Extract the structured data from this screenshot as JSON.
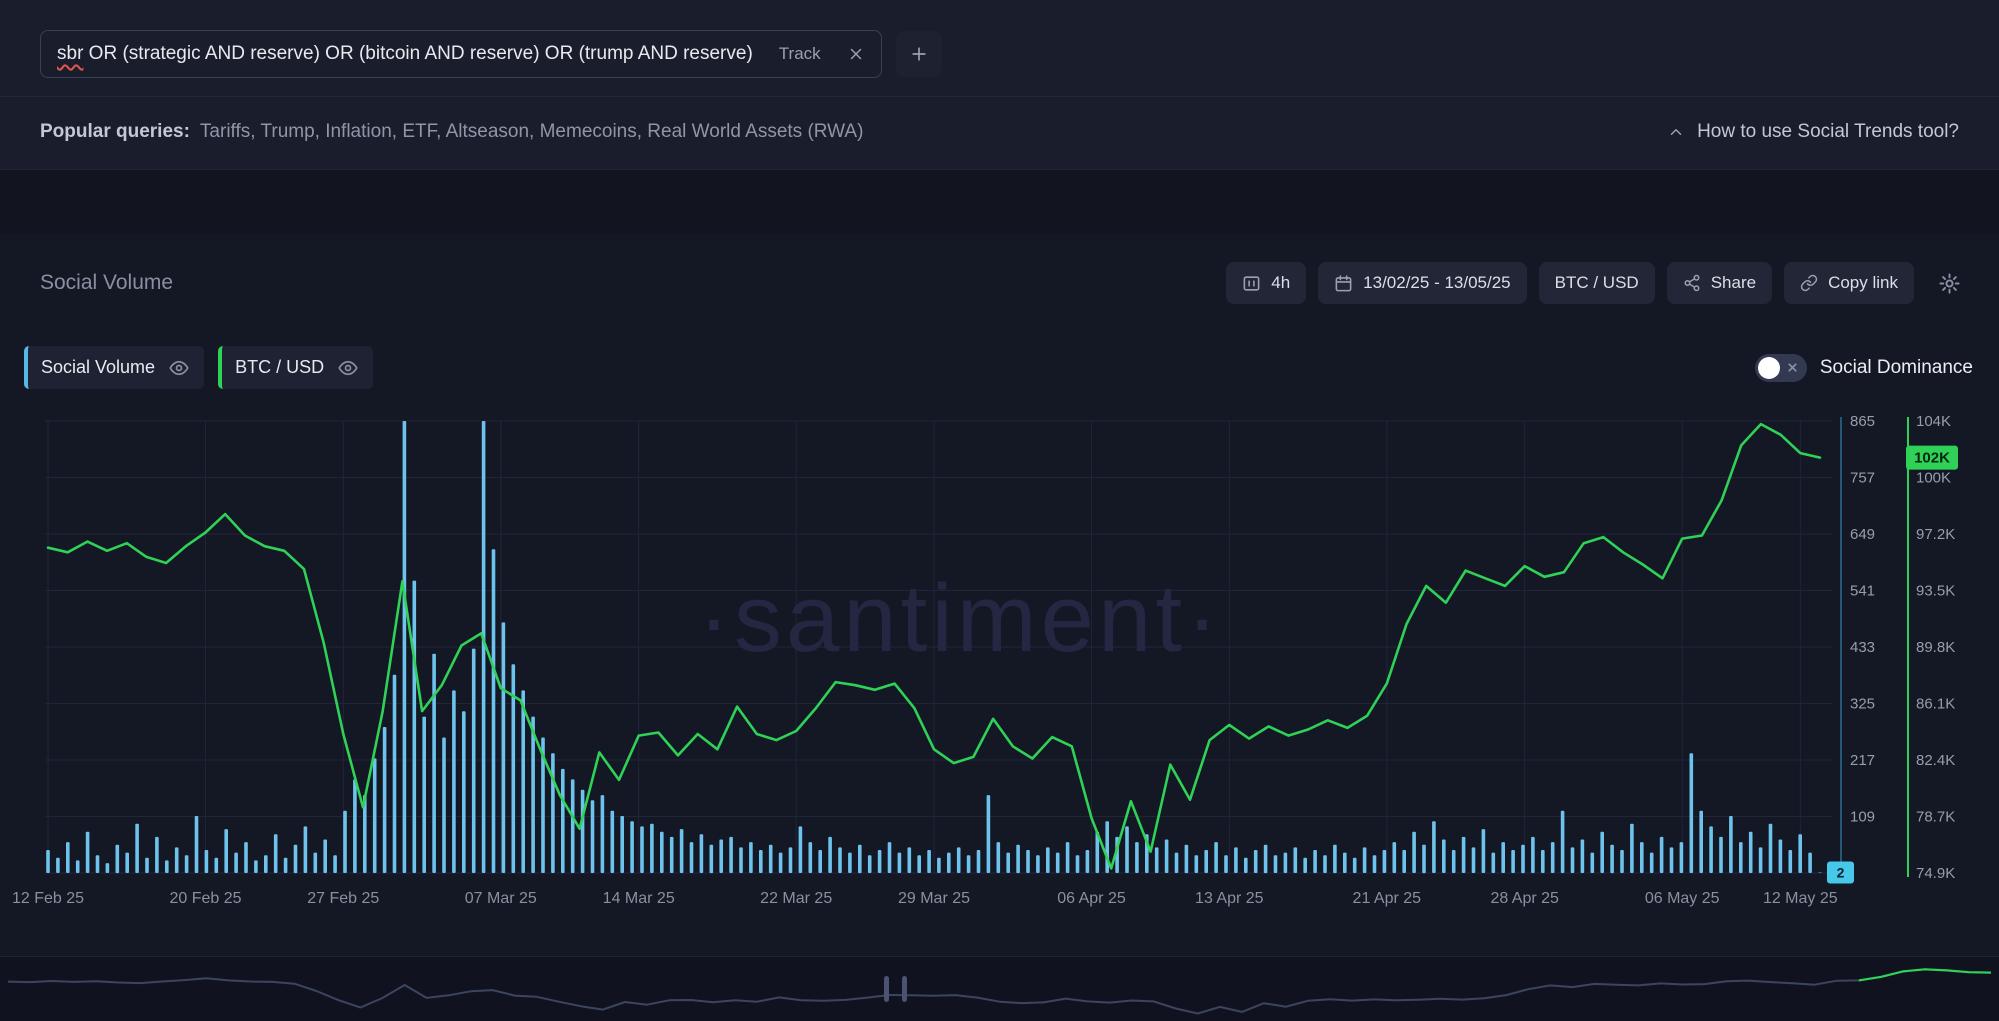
{
  "search": {
    "query_word": "sbr",
    "query_rest": " OR (strategic AND reserve) OR (bitcoin AND reserve) OR (trump AND reserve)",
    "track": "Track",
    "add": "+"
  },
  "popular": {
    "label": "Popular queries:",
    "items": "Tariffs, Trump, Inflation, ETF, Altseason, Memecoins, Real World Assets (RWA)",
    "help": "How to use Social Trends tool?"
  },
  "toolbar": {
    "title": "Social Volume",
    "interval": "4h",
    "date_range": "13/02/25 - 13/05/25",
    "pair": "BTC / USD",
    "share": "Share",
    "copy_link": "Copy link"
  },
  "legend": {
    "series1": "Social Volume",
    "series2": "BTC / USD",
    "dominance": "Social Dominance"
  },
  "watermark": "·santiment·",
  "colors": {
    "bars": "#6ec3ec",
    "line": "#2fd157",
    "volume_accent": "#45c8ea",
    "grid": "#20253a",
    "axis_text": "#989eac",
    "x_text": "#8a90a0"
  },
  "chart_data": {
    "type": "mixed",
    "span_days": 90,
    "x_ticks": [
      "12 Feb 25",
      "20 Feb 25",
      "27 Feb 25",
      "07 Mar 25",
      "14 Mar 25",
      "22 Mar 25",
      "29 Mar 25",
      "06 Apr 25",
      "13 Apr 25",
      "21 Apr 25",
      "28 Apr 25",
      "06 May 25",
      "12 May 25"
    ],
    "x_tick_days": [
      0,
      8,
      15,
      23,
      30,
      38,
      45,
      53,
      60,
      68,
      75,
      83,
      89
    ],
    "volume_axis_ticks": [
      865,
      757,
      649,
      541,
      433,
      325,
      217,
      109
    ],
    "volume_range": [
      1,
      865
    ],
    "price_axis_ticks": [
      "104K",
      "100K",
      "97.2K",
      "93.5K",
      "89.8K",
      "86.1K",
      "82.4K",
      "78.7K",
      "74.9K"
    ],
    "price_range": [
      74.9,
      104.5
    ],
    "series": [
      {
        "name": "Social Volume",
        "type": "bar",
        "color": "#6ec3ec",
        "current": 2,
        "current_label": "2",
        "values": [
          45,
          30,
          60,
          25,
          80,
          35,
          20,
          55,
          40,
          95,
          30,
          70,
          25,
          50,
          35,
          110,
          45,
          30,
          85,
          40,
          60,
          25,
          35,
          75,
          30,
          55,
          90,
          40,
          65,
          35,
          120,
          180,
          150,
          220,
          280,
          380,
          865,
          560,
          300,
          420,
          260,
          350,
          310,
          430,
          865,
          620,
          480,
          400,
          350,
          300,
          260,
          230,
          200,
          180,
          160,
          140,
          150,
          120,
          110,
          100,
          90,
          95,
          80,
          70,
          85,
          60,
          75,
          55,
          65,
          70,
          50,
          60,
          45,
          55,
          40,
          50,
          90,
          60,
          45,
          70,
          50,
          40,
          55,
          35,
          45,
          60,
          40,
          50,
          35,
          45,
          30,
          40,
          50,
          35,
          45,
          150,
          60,
          40,
          55,
          45,
          35,
          50,
          40,
          60,
          35,
          45,
          80,
          100,
          70,
          90,
          60,
          75,
          50,
          65,
          40,
          55,
          35,
          45,
          60,
          35,
          50,
          30,
          45,
          55,
          35,
          40,
          50,
          30,
          45,
          35,
          55,
          40,
          30,
          50,
          35,
          45,
          60,
          45,
          80,
          55,
          100,
          65,
          45,
          70,
          50,
          85,
          40,
          60,
          45,
          55,
          70,
          45,
          60,
          120,
          50,
          65,
          40,
          80,
          55,
          45,
          95,
          60,
          40,
          70,
          50,
          60,
          230,
          120,
          90,
          70,
          110,
          60,
          80,
          50,
          95,
          65,
          45,
          75,
          40,
          2
        ]
      },
      {
        "name": "BTC / USD",
        "type": "line",
        "color": "#2fd157",
        "current": 102.1,
        "current_label": "102K",
        "unit": "K USD",
        "values": [
          96.2,
          95.9,
          96.6,
          96.0,
          96.5,
          95.6,
          95.2,
          96.3,
          97.2,
          98.4,
          97.0,
          96.3,
          96.0,
          94.8,
          90.0,
          84.0,
          79.2,
          85.5,
          94.0,
          85.5,
          87.2,
          89.8,
          90.6,
          87.0,
          86.2,
          83.0,
          80.0,
          77.8,
          82.8,
          81.0,
          83.9,
          84.1,
          82.6,
          84.0,
          83.0,
          85.8,
          84.0,
          83.6,
          84.2,
          85.7,
          87.4,
          87.2,
          86.9,
          87.3,
          85.7,
          83.0,
          82.1,
          82.5,
          85.0,
          83.2,
          82.4,
          83.8,
          83.2,
          78.5,
          75.2,
          79.6,
          76.3,
          82.0,
          79.7,
          83.6,
          84.6,
          83.7,
          84.5,
          83.9,
          84.3,
          84.9,
          84.4,
          85.2,
          87.3,
          91.2,
          93.7,
          92.6,
          94.7,
          94.2,
          93.7,
          95.0,
          94.3,
          94.6,
          96.5,
          96.9,
          95.9,
          95.1,
          94.2,
          96.8,
          97.0,
          99.3,
          102.9,
          104.3,
          103.6,
          102.4,
          102.1
        ]
      }
    ]
  }
}
